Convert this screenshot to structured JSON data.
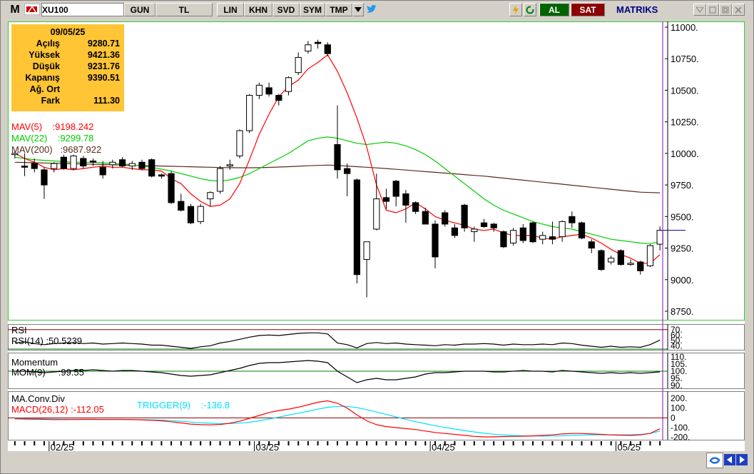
{
  "toolbar": {
    "m_label": "M",
    "symbol": "XU100",
    "period": "GUN",
    "currency": "TL",
    "btn_lin": "LIN",
    "btn_khn": "KHN",
    "btn_svd": "SVD",
    "btn_sym": "SYM",
    "btn_tmp": "TMP",
    "al_label": "AL",
    "sat_label": "SAT",
    "brand": "MATRIKS",
    "icons": [
      "dropdown-arrow-icon",
      "twitter-icon",
      "lightning-icon",
      "refresh-icon",
      "minimize-icon",
      "restore-icon",
      "close-icon"
    ]
  },
  "info_panel": {
    "date": "09/05/25",
    "rows": [
      {
        "label": "Açılış",
        "value": "9280.71"
      },
      {
        "label": "Yüksek",
        "value": "9421.36"
      },
      {
        "label": "Düşük",
        "value": "9231.76"
      },
      {
        "label": "Kapanış",
        "value": "9390.51"
      },
      {
        "label": "Ağ. Ort",
        "value": ""
      },
      {
        "label": "Fark",
        "value": "111.30"
      }
    ]
  },
  "indicators": {
    "mav5": {
      "label": "MAV(5)",
      "value": ":9198.242",
      "color": "#ff0000"
    },
    "mav22": {
      "label": "MAV(22)",
      "value": ":9299.78",
      "color": "#00cc00"
    },
    "mav200": {
      "label": "MAV(200)",
      "value": ":9687.922",
      "color": "#5a2a1a"
    },
    "rsi_title": "RSI",
    "rsi_label": "RSI(14)",
    "rsi_value": ":50.5239",
    "mom_title": "Momentum",
    "mom_label": "MOM(9)",
    "mom_value": ":99.55",
    "macd_title": "MA.Conv.Div",
    "macd_label": "MACD(26,12)",
    "macd_value": ":-112.05",
    "trigger_label": "TRIGGER(9)",
    "trigger_value": ":-136.8"
  },
  "chart_data": {
    "type": "candlestick",
    "price_axis": {
      "ticks": [
        "11000.",
        "10750.",
        "10500.",
        "10250.",
        "10000.",
        "9750.",
        "9500.",
        "9250.",
        "9000.",
        "8750."
      ],
      "ylim": [
        8750,
        11000
      ]
    },
    "rsi_axis": {
      "ticks": [
        "70.",
        "60.",
        "50.",
        "40."
      ]
    },
    "mom_axis": {
      "ticks": [
        "110.",
        "105.",
        "100.",
        "95.",
        "90."
      ]
    },
    "macd_axis": {
      "ticks": [
        "200.",
        "100.",
        "0",
        "-100.",
        "-200."
      ]
    },
    "x_labels": [
      "02/25",
      "03/25",
      "04/25",
      "05/25"
    ],
    "candles": [
      {
        "o": 9990,
        "h": 10020,
        "l": 9960,
        "c": 10000
      },
      {
        "o": 9900,
        "h": 10000,
        "l": 9820,
        "c": 9890
      },
      {
        "o": 9920,
        "h": 9960,
        "l": 9850,
        "c": 9880
      },
      {
        "o": 9870,
        "h": 9890,
        "l": 9640,
        "c": 9750
      },
      {
        "o": 9880,
        "h": 9930,
        "l": 9850,
        "c": 9920
      },
      {
        "o": 9970,
        "h": 9990,
        "l": 9870,
        "c": 9880
      },
      {
        "o": 9880,
        "h": 9990,
        "l": 9870,
        "c": 9980
      },
      {
        "o": 9960,
        "h": 9980,
        "l": 9880,
        "c": 9900
      },
      {
        "o": 9940,
        "h": 9960,
        "l": 9900,
        "c": 9930
      },
      {
        "o": 9890,
        "h": 9940,
        "l": 9800,
        "c": 9830
      },
      {
        "o": 9910,
        "h": 9950,
        "l": 9880,
        "c": 9930
      },
      {
        "o": 9950,
        "h": 9970,
        "l": 9890,
        "c": 9900
      },
      {
        "o": 9900,
        "h": 9940,
        "l": 9870,
        "c": 9920
      },
      {
        "o": 9930,
        "h": 9950,
        "l": 9870,
        "c": 9880
      },
      {
        "o": 9950,
        "h": 9960,
        "l": 9810,
        "c": 9820
      },
      {
        "o": 9830,
        "h": 9840,
        "l": 9800,
        "c": 9820
      },
      {
        "o": 9840,
        "h": 9860,
        "l": 9600,
        "c": 9610
      },
      {
        "o": 9620,
        "h": 9680,
        "l": 9540,
        "c": 9550
      },
      {
        "o": 9580,
        "h": 9600,
        "l": 9440,
        "c": 9450
      },
      {
        "o": 9460,
        "h": 9600,
        "l": 9440,
        "c": 9580
      },
      {
        "o": 9640,
        "h": 9700,
        "l": 9580,
        "c": 9690
      },
      {
        "o": 9700,
        "h": 9900,
        "l": 9680,
        "c": 9880
      },
      {
        "o": 9900,
        "h": 9950,
        "l": 9870,
        "c": 9910
      },
      {
        "o": 9980,
        "h": 10190,
        "l": 9960,
        "c": 10180
      },
      {
        "o": 10180,
        "h": 10470,
        "l": 10160,
        "c": 10460
      },
      {
        "o": 10460,
        "h": 10560,
        "l": 10430,
        "c": 10540
      },
      {
        "o": 10520,
        "h": 10560,
        "l": 10450,
        "c": 10470
      },
      {
        "o": 10460,
        "h": 10470,
        "l": 10380,
        "c": 10420
      },
      {
        "o": 10490,
        "h": 10610,
        "l": 10460,
        "c": 10600
      },
      {
        "o": 10640,
        "h": 10800,
        "l": 10620,
        "c": 10760
      },
      {
        "o": 10810,
        "h": 10890,
        "l": 10790,
        "c": 10860
      },
      {
        "o": 10880,
        "h": 10900,
        "l": 10830,
        "c": 10870
      },
      {
        "o": 10860,
        "h": 10880,
        "l": 10770,
        "c": 10790
      },
      {
        "o": 10070,
        "h": 10380,
        "l": 9800,
        "c": 9870
      },
      {
        "o": 9880,
        "h": 9920,
        "l": 9660,
        "c": 9840
      },
      {
        "o": 9790,
        "h": 9800,
        "l": 8970,
        "c": 9040
      },
      {
        "o": 9160,
        "h": 9300,
        "l": 8860,
        "c": 9300
      },
      {
        "o": 9400,
        "h": 9840,
        "l": 9390,
        "c": 9640
      },
      {
        "o": 9650,
        "h": 9720,
        "l": 9560,
        "c": 9620
      },
      {
        "o": 9780,
        "h": 9790,
        "l": 9580,
        "c": 9660
      },
      {
        "o": 9680,
        "h": 9710,
        "l": 9450,
        "c": 9590
      },
      {
        "o": 9610,
        "h": 9620,
        "l": 9520,
        "c": 9540
      },
      {
        "o": 9540,
        "h": 9570,
        "l": 9460,
        "c": 9440
      },
      {
        "o": 9440,
        "h": 9470,
        "l": 9090,
        "c": 9180
      },
      {
        "o": 9530,
        "h": 9550,
        "l": 9420,
        "c": 9440
      },
      {
        "o": 9410,
        "h": 9440,
        "l": 9330,
        "c": 9350
      },
      {
        "o": 9590,
        "h": 9600,
        "l": 9380,
        "c": 9410
      },
      {
        "o": 9380,
        "h": 9420,
        "l": 9300,
        "c": 9400
      },
      {
        "o": 9450,
        "h": 9480,
        "l": 9410,
        "c": 9420
      },
      {
        "o": 9440,
        "h": 9450,
        "l": 9380,
        "c": 9410
      },
      {
        "o": 9380,
        "h": 9390,
        "l": 9250,
        "c": 9260
      },
      {
        "o": 9290,
        "h": 9410,
        "l": 9270,
        "c": 9390
      },
      {
        "o": 9410,
        "h": 9440,
        "l": 9290,
        "c": 9310
      },
      {
        "o": 9450,
        "h": 9460,
        "l": 9290,
        "c": 9300
      },
      {
        "o": 9320,
        "h": 9380,
        "l": 9280,
        "c": 9350
      },
      {
        "o": 9340,
        "h": 9460,
        "l": 9280,
        "c": 9320
      },
      {
        "o": 9340,
        "h": 9470,
        "l": 9300,
        "c": 9460
      },
      {
        "o": 9500,
        "h": 9540,
        "l": 9410,
        "c": 9450
      },
      {
        "o": 9450,
        "h": 9460,
        "l": 9320,
        "c": 9330
      },
      {
        "o": 9300,
        "h": 9320,
        "l": 9210,
        "c": 9250
      },
      {
        "o": 9230,
        "h": 9240,
        "l": 9070,
        "c": 9080
      },
      {
        "o": 9140,
        "h": 9190,
        "l": 9120,
        "c": 9170
      },
      {
        "o": 9230,
        "h": 9240,
        "l": 9110,
        "c": 9120
      },
      {
        "o": 9120,
        "h": 9160,
        "l": 9110,
        "c": 9130
      },
      {
        "o": 9140,
        "h": 9150,
        "l": 9040,
        "c": 9070
      },
      {
        "o": 9110,
        "h": 9280,
        "l": 9100,
        "c": 9270
      },
      {
        "o": 9280.71,
        "h": 9421.36,
        "l": 9231.76,
        "c": 9390.51
      }
    ],
    "mav5": [
      10000,
      9960,
      9930,
      9890,
      9870,
      9880,
      9870,
      9880,
      9890,
      9900,
      9890,
      9890,
      9880,
      9870,
      9870,
      9860,
      9800,
      9760,
      9680,
      9620,
      9580,
      9590,
      9640,
      9760,
      9950,
      10150,
      10310,
      10450,
      10530,
      10580,
      10670,
      10720,
      10780,
      10650,
      10480,
      10280,
      10050,
      9750,
      9550,
      9530,
      9560,
      9610,
      9560,
      9500,
      9470,
      9450,
      9430,
      9400,
      9390,
      9400,
      9370,
      9350,
      9350,
      9350,
      9330,
      9320,
      9340,
      9350,
      9360,
      9330,
      9290,
      9240,
      9200,
      9170,
      9130,
      9130,
      9198.242
    ],
    "mav22": [
      9970,
      9960,
      9950,
      9945,
      9940,
      9935,
      9930,
      9930,
      9930,
      9925,
      9920,
      9915,
      9910,
      9900,
      9890,
      9875,
      9860,
      9840,
      9820,
      9800,
      9785,
      9780,
      9790,
      9810,
      9840,
      9880,
      9920,
      9960,
      10000,
      10050,
      10100,
      10120,
      10130,
      10120,
      10100,
      10080,
      10070,
      10080,
      10090,
      10080,
      10060,
      10030,
      9990,
      9940,
      9880,
      9820,
      9760,
      9700,
      9640,
      9590,
      9550,
      9520,
      9490,
      9460,
      9440,
      9420,
      9410,
      9400,
      9380,
      9360,
      9340,
      9320,
      9310,
      9300,
      9290,
      9285,
      9299.78
    ],
    "mav200": [
      9930,
      9928,
      9926,
      9924,
      9922,
      9920,
      9918,
      9916,
      9914,
      9912,
      9910,
      9908,
      9906,
      9904,
      9902,
      9900,
      9898,
      9896,
      9894,
      9892,
      9890,
      9888,
      9887,
      9886,
      9886,
      9887,
      9889,
      9892,
      9895,
      9898,
      9902,
      9905,
      9907,
      9905,
      9900,
      9895,
      9890,
      9885,
      9880,
      9874,
      9868,
      9862,
      9856,
      9850,
      9844,
      9838,
      9832,
      9826,
      9820,
      9812,
      9804,
      9796,
      9788,
      9780,
      9772,
      9764,
      9756,
      9748,
      9740,
      9732,
      9724,
      9716,
      9708,
      9700,
      9693,
      9690,
      9687.922
    ],
    "rsi": [
      45,
      47,
      44,
      42,
      44,
      45,
      46,
      44,
      45,
      43,
      44,
      45,
      44,
      43,
      41,
      41,
      39,
      37,
      35,
      38,
      40,
      45,
      48,
      52,
      56,
      59,
      60,
      59,
      61,
      63,
      64,
      64,
      62,
      45,
      42,
      36,
      44,
      46,
      44,
      45,
      43,
      42,
      41,
      40,
      42,
      41,
      43,
      43,
      44,
      43,
      41,
      43,
      42,
      42,
      43,
      42,
      45,
      44,
      41,
      39,
      37,
      39,
      37,
      38,
      37,
      42,
      50.5239
    ],
    "momentum": [
      100,
      100,
      99.5,
      99,
      99.5,
      100,
      100.5,
      100.5,
      101,
      100.5,
      100,
      100.5,
      100.5,
      100,
      99.5,
      99,
      98,
      97,
      96.5,
      97,
      97.5,
      99,
      100.5,
      102,
      104,
      105.5,
      106,
      106,
      106.5,
      107,
      107.5,
      107,
      106,
      100,
      96,
      92,
      94,
      95,
      94,
      94,
      95,
      96,
      98,
      99,
      99,
      99.5,
      100,
      100,
      100,
      99.5,
      99.5,
      100,
      100.5,
      100,
      100,
      99.5,
      100.5,
      100,
      99.5,
      99,
      98.5,
      99,
      98.5,
      99,
      98.5,
      99,
      99.55
    ],
    "macd": [
      -10,
      -12,
      -14,
      -16,
      -18,
      -18,
      -17,
      -16,
      -16,
      -17,
      -17,
      -17,
      -18,
      -20,
      -25,
      -30,
      -40,
      -52,
      -64,
      -70,
      -72,
      -68,
      -55,
      -35,
      -5,
      25,
      55,
      75,
      90,
      110,
      135,
      160,
      175,
      150,
      100,
      30,
      -30,
      -70,
      -90,
      -100,
      -110,
      -120,
      -135,
      -150,
      -160,
      -170,
      -180,
      -190,
      -195,
      -195,
      -192,
      -190,
      -188,
      -185,
      -180,
      -175,
      -165,
      -160,
      -160,
      -165,
      -170,
      -175,
      -178,
      -180,
      -175,
      -160,
      -112.05
    ],
    "trigger": [
      -5,
      -7,
      -9,
      -11,
      -13,
      -14,
      -15,
      -15,
      -16,
      -16,
      -16,
      -16,
      -17,
      -18,
      -20,
      -23,
      -28,
      -35,
      -43,
      -50,
      -55,
      -58,
      -58,
      -54,
      -45,
      -30,
      -12,
      8,
      28,
      48,
      68,
      90,
      108,
      118,
      118,
      105,
      85,
      60,
      35,
      10,
      -15,
      -40,
      -60,
      -80,
      -98,
      -115,
      -130,
      -145,
      -158,
      -168,
      -175,
      -180,
      -184,
      -186,
      -187,
      -186,
      -184,
      -180,
      -177,
      -175,
      -174,
      -174,
      -174,
      -173,
      -170,
      -160,
      -136.8
    ]
  }
}
